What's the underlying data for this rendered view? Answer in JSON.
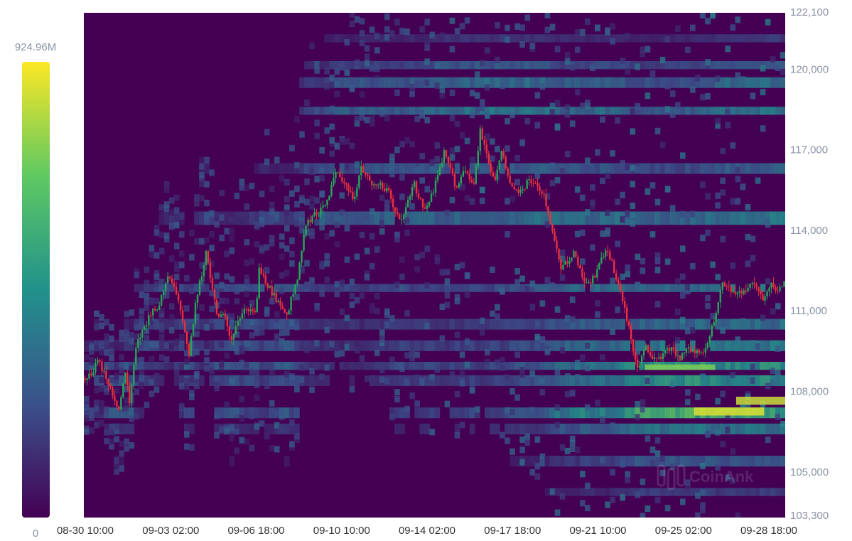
{
  "chart_data": {
    "type": "heatmap",
    "title": "",
    "xlabel": "",
    "ylabel": "",
    "x_tick_labels": [
      "08-30 10:00",
      "09-03 02:00",
      "09-06 18:00",
      "09-10 10:00",
      "09-14 02:00",
      "09-17 18:00",
      "09-21 10:00",
      "09-25 02:00",
      "09-28 18:00"
    ],
    "y_tick_labels": [
      "122,100",
      "120,000",
      "117,000",
      "114,000",
      "111,000",
      "108,000",
      "105,000",
      "103,300"
    ],
    "y_tick_values": [
      122100,
      120000,
      117000,
      114000,
      111000,
      108000,
      105000,
      103300
    ],
    "ylim": [
      103300,
      122100
    ],
    "y_axis_position": "right",
    "colorbar": {
      "max_label": "924.96M",
      "min_label": "0",
      "max_value": 924960000,
      "min_value": 0,
      "colors": [
        "#440154",
        "#3b528b",
        "#21918c",
        "#5ec962",
        "#fde725"
      ],
      "position": "left"
    },
    "bands": [
      {
        "price_low": 107000,
        "price_high": 107400,
        "intensity": 0.78
      },
      {
        "price_low": 106400,
        "price_high": 106800,
        "intensity": 0.55
      },
      {
        "price_low": 108200,
        "price_high": 108600,
        "intensity": 0.6
      },
      {
        "price_low": 108800,
        "price_high": 109100,
        "intensity": 0.62
      },
      {
        "price_low": 109500,
        "price_high": 109900,
        "intensity": 0.5
      },
      {
        "price_low": 110300,
        "price_high": 110700,
        "intensity": 0.42
      },
      {
        "price_low": 111700,
        "price_high": 112000,
        "intensity": 0.45
      },
      {
        "price_low": 114200,
        "price_high": 114700,
        "intensity": 0.5
      },
      {
        "price_low": 116100,
        "price_high": 116500,
        "intensity": 0.4
      },
      {
        "price_low": 118300,
        "price_high": 118600,
        "intensity": 0.62
      },
      {
        "price_low": 119300,
        "price_high": 119700,
        "intensity": 0.6
      },
      {
        "price_low": 120000,
        "price_high": 120300,
        "intensity": 0.5
      },
      {
        "price_low": 121000,
        "price_high": 121300,
        "intensity": 0.32
      },
      {
        "price_low": 104100,
        "price_high": 104400,
        "intensity": 0.3
      },
      {
        "price_low": 105200,
        "price_high": 105600,
        "intensity": 0.4
      }
    ],
    "hotspots": [
      {
        "t": 0.92,
        "price_low": 107100,
        "price_high": 107400,
        "intensity": 0.95
      },
      {
        "t": 0.98,
        "price_low": 107500,
        "price_high": 107800,
        "intensity": 0.92
      },
      {
        "t": 0.85,
        "price_low": 108800,
        "price_high": 109000,
        "intensity": 0.8
      }
    ],
    "price_series": {
      "t": [
        0.0,
        0.01,
        0.02,
        0.035,
        0.05,
        0.06,
        0.065,
        0.075,
        0.09,
        0.1,
        0.105,
        0.12,
        0.135,
        0.15,
        0.16,
        0.175,
        0.19,
        0.2,
        0.21,
        0.22,
        0.235,
        0.245,
        0.25,
        0.27,
        0.29,
        0.305,
        0.315,
        0.33,
        0.345,
        0.36,
        0.375,
        0.385,
        0.395,
        0.41,
        0.42,
        0.435,
        0.445,
        0.455,
        0.47,
        0.485,
        0.5,
        0.515,
        0.53,
        0.545,
        0.555,
        0.565,
        0.575,
        0.585,
        0.595,
        0.61,
        0.62,
        0.635,
        0.645,
        0.655,
        0.665,
        0.68,
        0.7,
        0.715,
        0.73,
        0.745,
        0.755,
        0.765,
        0.775,
        0.79,
        0.8,
        0.81,
        0.825,
        0.835,
        0.85,
        0.86,
        0.87,
        0.885,
        0.9,
        0.91,
        0.925,
        0.94,
        0.955,
        0.97,
        0.98,
        0.99,
        1.0
      ],
      "price": [
        108500,
        108600,
        109200,
        108300,
        107300,
        108800,
        107500,
        109700,
        110600,
        111200,
        111000,
        112400,
        111500,
        109400,
        111400,
        113200,
        110700,
        110800,
        109900,
        110700,
        111100,
        110800,
        112500,
        111600,
        110900,
        112300,
        114200,
        114600,
        114900,
        116200,
        115600,
        115200,
        116300,
        115700,
        115800,
        115400,
        114600,
        114400,
        115800,
        114700,
        115600,
        117000,
        115600,
        116400,
        115500,
        117700,
        116800,
        115800,
        116900,
        115700,
        115300,
        115900,
        115600,
        115400,
        114300,
        112500,
        113200,
        111900,
        112300,
        113400,
        112600,
        111800,
        110600,
        108800,
        109700,
        109300,
        109300,
        109600,
        109200,
        109600,
        109400,
        109600,
        110700,
        112100,
        111600,
        111700,
        112000,
        111400,
        112000,
        111700,
        112100
      ]
    }
  },
  "watermark": {
    "text": "CoinAnk",
    "icon": "coinank-logo-icon"
  }
}
